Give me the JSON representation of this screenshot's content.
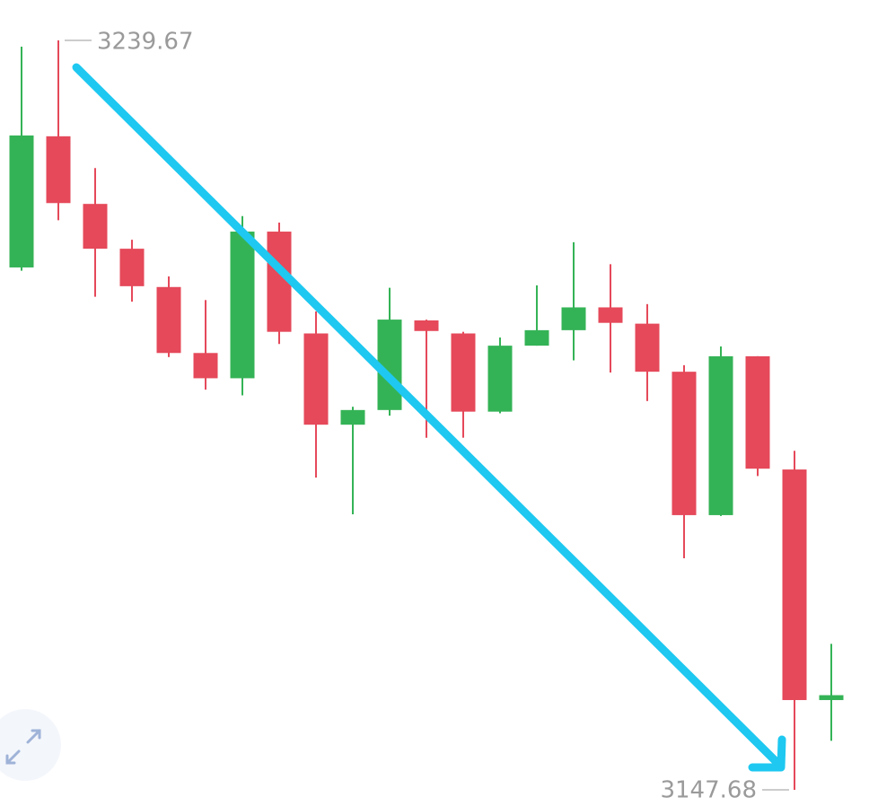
{
  "chart_data": {
    "type": "candlestick",
    "ylim": [
      3147.68,
      3239.67
    ],
    "up_color": "#34b356",
    "down_color": "#e5495a",
    "annotations": [
      {
        "value": 3239.67
      },
      {
        "value": 3147.68
      }
    ],
    "candles": [
      {
        "open": 3211.8,
        "high": 3238.9,
        "low": 3211.4,
        "close": 3228.0
      },
      {
        "open": 3227.9,
        "high": 3239.67,
        "low": 3217.6,
        "close": 3219.7
      },
      {
        "open": 3219.6,
        "high": 3224.0,
        "low": 3208.2,
        "close": 3214.1
      },
      {
        "open": 3214.1,
        "high": 3215.2,
        "low": 3207.6,
        "close": 3209.5
      },
      {
        "open": 3209.4,
        "high": 3210.7,
        "low": 3200.8,
        "close": 3201.3
      },
      {
        "open": 3201.3,
        "high": 3207.8,
        "low": 3196.8,
        "close": 3198.2
      },
      {
        "open": 3198.2,
        "high": 3218.1,
        "low": 3196.1,
        "close": 3216.2
      },
      {
        "open": 3216.2,
        "high": 3217.3,
        "low": 3202.4,
        "close": 3203.9
      },
      {
        "open": 3203.7,
        "high": 3206.4,
        "low": 3186.0,
        "close": 3192.5
      },
      {
        "open": 3192.5,
        "high": 3194.7,
        "low": 3181.5,
        "close": 3194.3
      },
      {
        "open": 3194.3,
        "high": 3209.3,
        "low": 3193.6,
        "close": 3205.4
      },
      {
        "open": 3205.3,
        "high": 3205.4,
        "low": 3190.9,
        "close": 3204.0
      },
      {
        "open": 3203.7,
        "high": 3203.9,
        "low": 3190.9,
        "close": 3194.1
      },
      {
        "open": 3194.1,
        "high": 3203.2,
        "low": 3193.9,
        "close": 3202.2
      },
      {
        "open": 3202.2,
        "high": 3209.6,
        "low": 3202.2,
        "close": 3204.1
      },
      {
        "open": 3204.1,
        "high": 3214.9,
        "low": 3200.4,
        "close": 3206.9
      },
      {
        "open": 3206.9,
        "high": 3212.2,
        "low": 3198.9,
        "close": 3205.0
      },
      {
        "open": 3204.9,
        "high": 3207.3,
        "low": 3195.4,
        "close": 3199.0
      },
      {
        "open": 3199.0,
        "high": 3199.8,
        "low": 3176.1,
        "close": 3181.4
      },
      {
        "open": 3181.4,
        "high": 3202.1,
        "low": 3181.3,
        "close": 3200.9
      },
      {
        "open": 3200.9,
        "high": 3200.9,
        "low": 3186.2,
        "close": 3187.1
      },
      {
        "open": 3187.0,
        "high": 3189.3,
        "low": 3147.68,
        "close": 3158.7
      },
      {
        "open": 3158.7,
        "high": 3165.6,
        "low": 3153.7,
        "close": 3159.3
      }
    ]
  }
}
